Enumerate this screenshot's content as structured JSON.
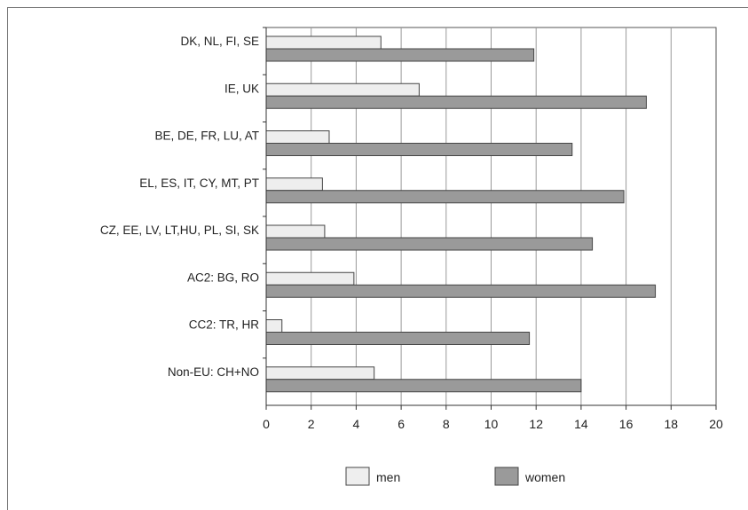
{
  "chart_data": {
    "type": "bar",
    "orientation": "horizontal",
    "categories": [
      "DK, NL, FI, SE",
      "IE, UK",
      "BE, DE, FR, LU, AT",
      "EL, ES, IT, CY, MT, PT",
      "CZ, EE, LV, LT,HU, PL, SI, SK",
      "AC2: BG, RO",
      "CC2: TR, HR",
      "Non-EU: CH+NO"
    ],
    "series": [
      {
        "name": "men",
        "values": [
          5.1,
          6.8,
          2.8,
          2.5,
          2.6,
          3.9,
          0.7,
          4.8
        ],
        "color": "#eeeeee"
      },
      {
        "name": "women",
        "values": [
          11.9,
          16.9,
          13.6,
          15.9,
          14.5,
          17.3,
          11.7,
          14.0
        ],
        "color": "#9a9a9a"
      }
    ],
    "xlim": [
      0,
      20
    ],
    "xticks": [
      0,
      2,
      4,
      6,
      8,
      10,
      12,
      14,
      16,
      18,
      20
    ],
    "grid": "vertical",
    "legend": "bottom-center",
    "title": "",
    "xlabel": "",
    "ylabel": ""
  }
}
